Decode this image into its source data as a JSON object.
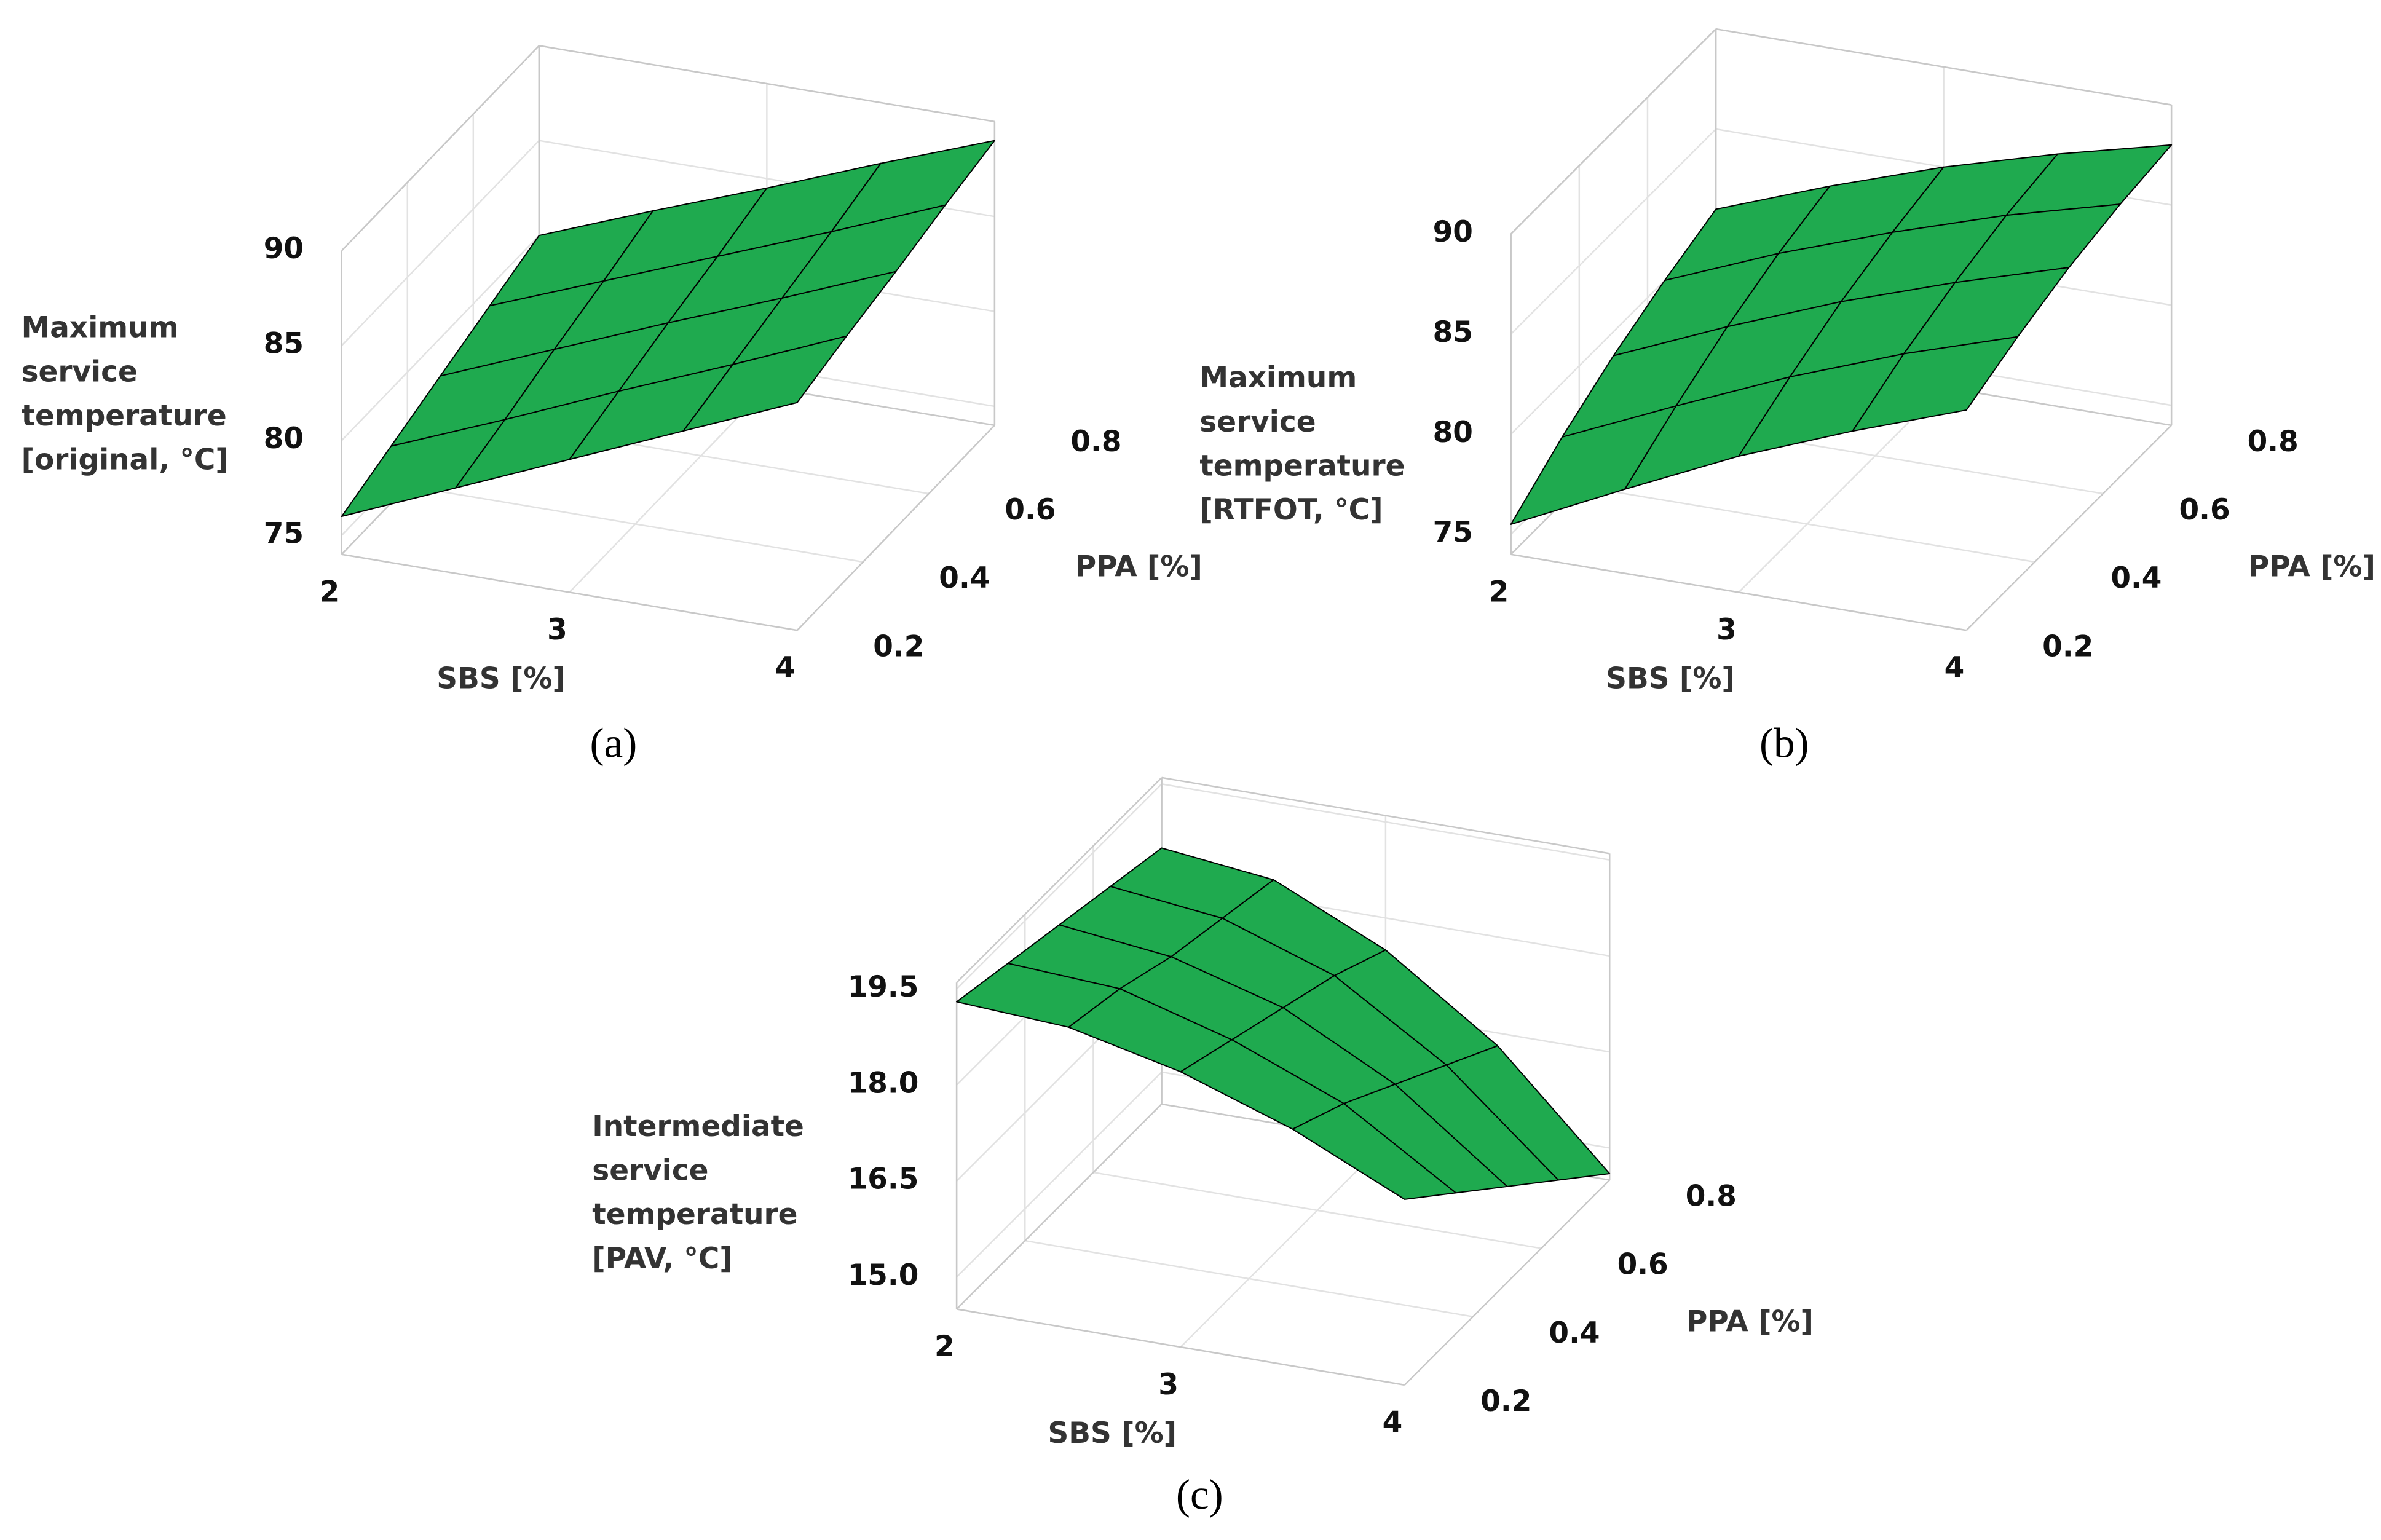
{
  "chart_data": [
    {
      "type": "surface",
      "caption": "(a)",
      "x_label": "SBS [%]",
      "y_label": "PPA [%]",
      "z_label": [
        "Maximum",
        "service",
        "temperature",
        "[original, °C]"
      ],
      "color": "#1faa4f",
      "grid": true,
      "x": [
        2,
        2.5,
        3,
        3.5,
        4
      ],
      "y": [
        0.2,
        0.35,
        0.5,
        0.65,
        0.8
      ],
      "z": [
        [
          76,
          78.5,
          81,
          83.5,
          86
        ],
        [
          77,
          79.4,
          81.9,
          84.3,
          86.8
        ],
        [
          78,
          80.4,
          82.8,
          85.1,
          87.5
        ],
        [
          79,
          81.3,
          83.6,
          85.9,
          88.3
        ],
        [
          80,
          82.3,
          84.5,
          86.8,
          89
        ]
      ],
      "xlim": [
        2,
        4
      ],
      "ylim": [
        0.2,
        0.8
      ],
      "zlim": [
        74,
        90
      ],
      "xticks": [
        2,
        3,
        4
      ],
      "yticks": [
        0.2,
        0.4,
        0.6,
        0.8
      ],
      "zticks": [
        75,
        80,
        85,
        90
      ]
    },
    {
      "type": "surface",
      "caption": "(b)",
      "x_label": "SBS [%]",
      "y_label": "PPA [%]",
      "z_label": [
        "Maximum",
        "service",
        "temperature",
        "[RTFOT, °C]"
      ],
      "color": "#1faa4f",
      "grid": true,
      "x": [
        2,
        2.5,
        3,
        3.5,
        4
      ],
      "y": [
        0.2,
        0.35,
        0.5,
        0.65,
        0.8
      ],
      "z": [
        [
          75.5,
          78.2,
          80.8,
          83.0,
          85
        ],
        [
          77.3,
          79.8,
          82.2,
          84.3,
          86.1
        ],
        [
          78.8,
          81.2,
          83.4,
          85.3,
          87.0
        ],
        [
          80.0,
          82.3,
          84.3,
          86.1,
          87.6
        ],
        [
          81,
          83.1,
          85,
          86.6,
          88
        ]
      ],
      "xlim": [
        2,
        4
      ],
      "ylim": [
        0.2,
        0.8
      ],
      "zlim": [
        74,
        90
      ],
      "xticks": [
        2,
        3,
        4
      ],
      "yticks": [
        0.2,
        0.4,
        0.6,
        0.8
      ],
      "zticks": [
        75,
        80,
        85,
        90
      ]
    },
    {
      "type": "surface",
      "caption": "(c)",
      "x_label": "SBS [%]",
      "y_label": "PPA [%]",
      "z_label": [
        "Intermediate",
        "service",
        "temperature",
        "[PAV, °C]"
      ],
      "color": "#1faa4f",
      "grid": true,
      "x": [
        2,
        2.5,
        3,
        3.5,
        4
      ],
      "y": [
        0.2,
        0.35,
        0.5,
        0.65,
        0.8
      ],
      "z": [
        [
          19.3,
          19.2,
          18.8,
          18.2,
          17.4
        ],
        [
          19.1,
          19.0,
          18.5,
          17.8,
          16.7
        ],
        [
          18.9,
          18.7,
          18.2,
          17.3,
          16.0
        ],
        [
          18.7,
          18.5,
          17.9,
          16.8,
          15.3
        ],
        [
          18.5,
          18.3,
          17.5,
          16.3,
          14.6
        ]
      ],
      "xlim": [
        2,
        4
      ],
      "ylim": [
        0.2,
        0.8
      ],
      "zlim": [
        14.5,
        19.6
      ],
      "xticks": [
        2,
        3,
        4
      ],
      "yticks": [
        0.2,
        0.4,
        0.6,
        0.8
      ],
      "zticks": [
        {
          "value": 15,
          "label": "15.0"
        },
        16.5,
        {
          "value": 18,
          "label": "18.0"
        },
        19.5
      ]
    }
  ]
}
